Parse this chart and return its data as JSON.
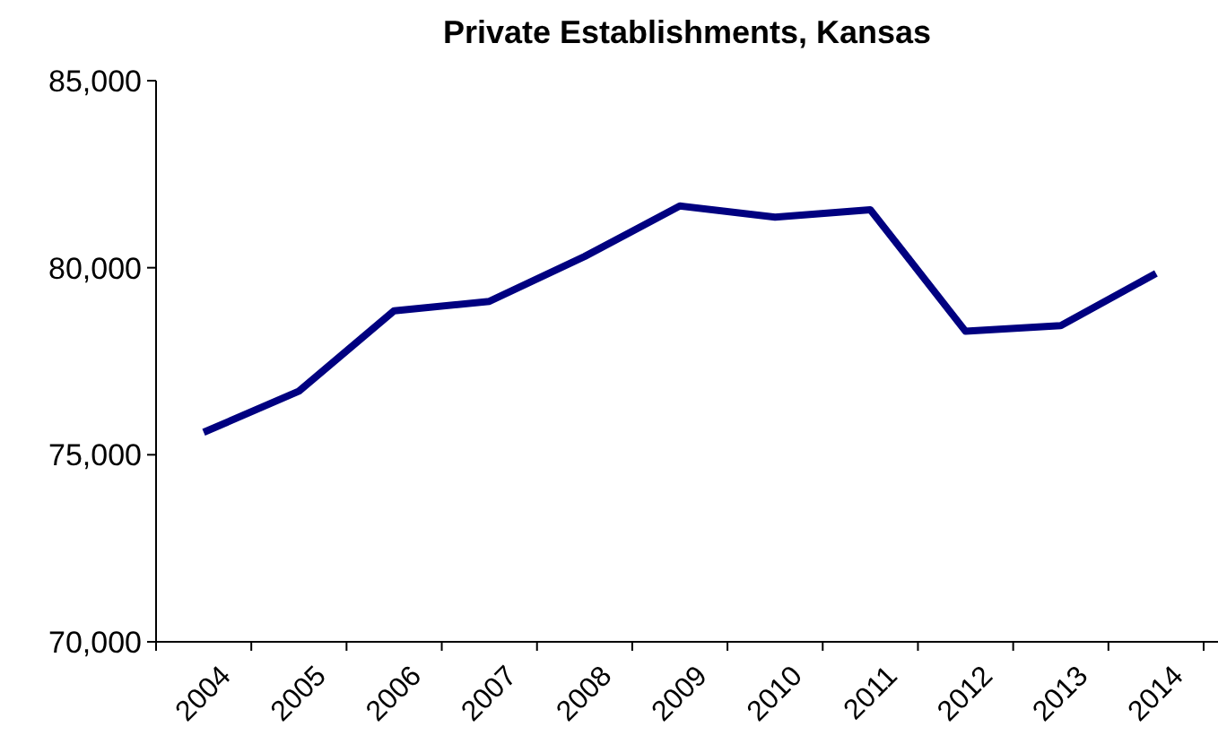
{
  "chart_data": {
    "type": "line",
    "title": "Private Establishments, Kansas",
    "categories": [
      "2004",
      "2005",
      "2006",
      "2007",
      "2008",
      "2009",
      "2010",
      "2011",
      "2012",
      "2013",
      "2014"
    ],
    "series": [
      {
        "color": "#000080",
        "values": [
          75600,
          76700,
          78850,
          79100,
          80300,
          81650,
          81350,
          81550,
          78300,
          78450,
          79850
        ]
      }
    ],
    "ylim": [
      70000,
      85000
    ],
    "yticks": [
      {
        "value": 70000,
        "label": "70,000"
      },
      {
        "value": 75000,
        "label": "75,000"
      },
      {
        "value": 80000,
        "label": "80,000"
      },
      {
        "value": 85000,
        "label": "85,000"
      }
    ],
    "marker": "none",
    "line_style": "solid"
  }
}
